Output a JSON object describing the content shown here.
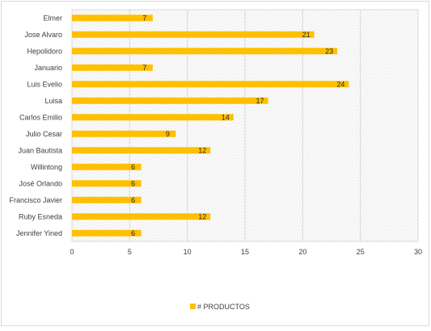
{
  "chart_data": {
    "type": "bar",
    "orientation": "horizontal",
    "categories": [
      "Elmer",
      "Jose Alvaro",
      "Hepolidoro",
      "Januario",
      "Luis Evelio",
      "Luisa",
      "Carlos Emilio",
      "Julio Cesar",
      "Juan Bautista",
      "Willintong",
      "José Orlando",
      "Francisco Javier",
      "Ruby Esneda",
      "Jennifer Yined"
    ],
    "series": [
      {
        "name": "# PRODUCTOS",
        "values": [
          7,
          21,
          23,
          7,
          24,
          17,
          14,
          9,
          12,
          6,
          6,
          6,
          12,
          6
        ]
      }
    ],
    "xlim": [
      0,
      30
    ],
    "x_ticks": [
      0,
      5,
      10,
      15,
      20,
      25,
      30
    ],
    "data_labels": true,
    "grid": "vertical",
    "plot_background": "diagonal-hatch",
    "legend_position": "bottom",
    "bar_color": "#FFC000",
    "grid_color": "#d9d9d9"
  }
}
